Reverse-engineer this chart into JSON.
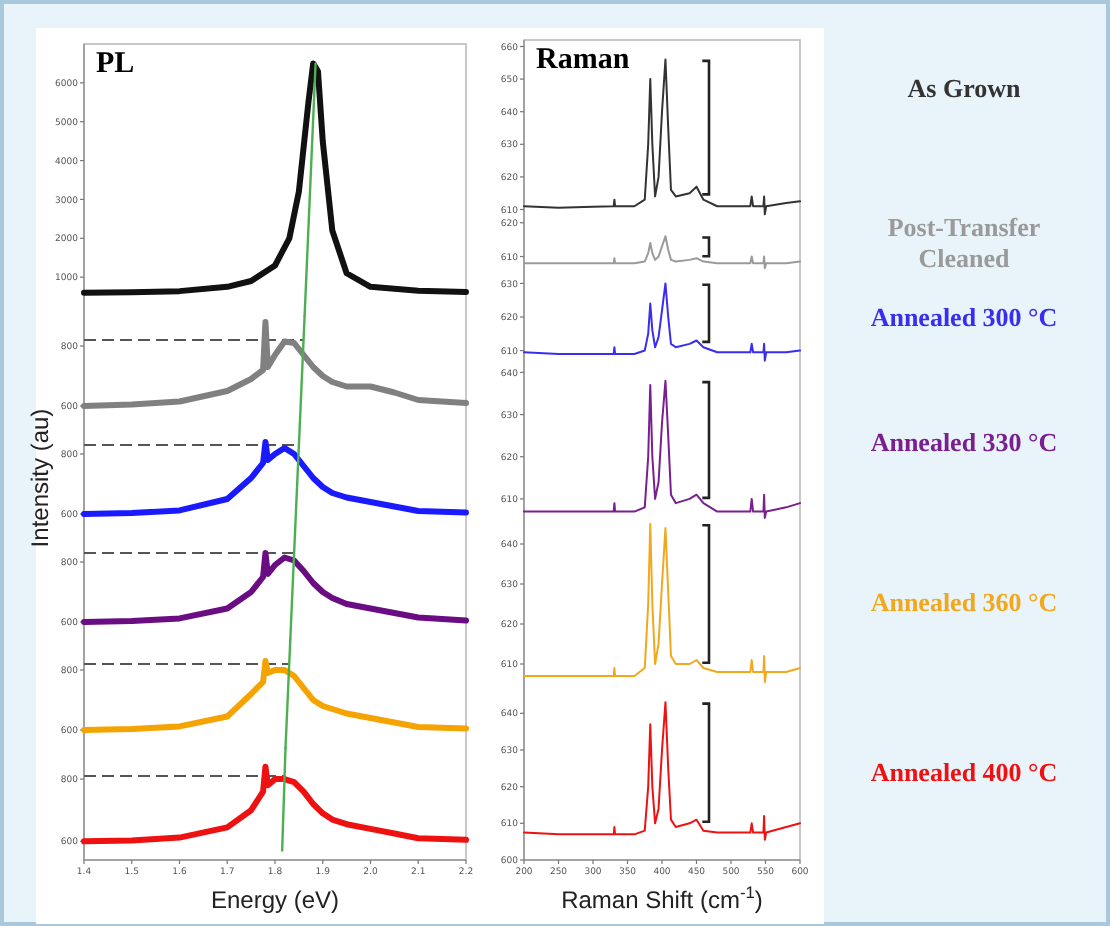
{
  "chart_data": [
    {
      "type": "line",
      "title": "PL",
      "xlim": [
        1.4,
        2.2
      ],
      "ylim": [
        0,
        7000
      ],
      "yticks": [
        1000,
        2000,
        3000,
        4000,
        5000,
        6000
      ],
      "tick_labels": "y",
      "series": [
        {
          "color": "#111111",
          "x": [
            1.4,
            1.5,
            1.6,
            1.7,
            1.75,
            1.8,
            1.83,
            1.85,
            1.87,
            1.88,
            1.89,
            1.9,
            1.92,
            1.95,
            2.0,
            2.1,
            2.2
          ],
          "values": [
            600,
            610,
            640,
            750,
            900,
            1300,
            2000,
            3200,
            5500,
            6500,
            6300,
            4500,
            2200,
            1100,
            750,
            650,
            620
          ]
        },
        {
          "type": "line",
          "color": "#4caf50",
          "x": [
            1.885,
            1.862
          ],
          "values": [
            6500,
            0
          ]
        }
      ]
    },
    {
      "type": "line",
      "xlim": [
        1.4,
        2.2
      ],
      "ylim": [
        540,
        900
      ],
      "yticks": [
        600,
        800
      ],
      "tick_labels": "y",
      "ref_lines": [
        {
          "axis": "y",
          "value": 820,
          "color": "#555555",
          "line_style": "dashed"
        }
      ],
      "series": [
        {
          "color": "#808080",
          "x": [
            1.4,
            1.5,
            1.6,
            1.7,
            1.75,
            1.775,
            1.78,
            1.785,
            1.8,
            1.82,
            1.84,
            1.86,
            1.88,
            1.9,
            1.92,
            1.95,
            2.0,
            2.05,
            2.1,
            2.2
          ],
          "values": [
            600,
            605,
            615,
            650,
            690,
            720,
            880,
            730,
            770,
            815,
            810,
            770,
            730,
            700,
            680,
            665,
            665,
            645,
            620,
            610
          ]
        },
        {
          "type": "line",
          "color": "#4caf50",
          "x": [
            1.862,
            1.852
          ],
          "values": [
            900,
            540
          ]
        }
      ]
    },
    {
      "type": "line",
      "ylabel": "Intensity (au)",
      "xlim": [
        1.4,
        2.2
      ],
      "ylim": [
        540,
        900
      ],
      "yticks": [
        600,
        800
      ],
      "tick_labels": "y",
      "ref_lines": [
        {
          "axis": "y",
          "value": 830,
          "color": "#555555",
          "line_style": "dashed"
        }
      ],
      "series": [
        {
          "color": "#1a1aff",
          "x": [
            1.4,
            1.5,
            1.6,
            1.7,
            1.75,
            1.775,
            1.78,
            1.785,
            1.8,
            1.82,
            1.84,
            1.86,
            1.88,
            1.9,
            1.92,
            1.95,
            2.0,
            2.05,
            2.1,
            2.2
          ],
          "values": [
            600,
            603,
            612,
            650,
            720,
            770,
            840,
            780,
            800,
            820,
            800,
            760,
            720,
            690,
            670,
            655,
            640,
            625,
            610,
            605
          ]
        },
        {
          "type": "line",
          "color": "#4caf50",
          "x": [
            1.852,
            1.842
          ],
          "values": [
            900,
            540
          ]
        }
      ]
    },
    {
      "type": "line",
      "xlim": [
        1.4,
        2.2
      ],
      "ylim": [
        540,
        900
      ],
      "yticks": [
        600,
        800
      ],
      "tick_labels": "y",
      "ref_lines": [
        {
          "axis": "y",
          "value": 830,
          "color": "#555555",
          "line_style": "dashed"
        }
      ],
      "series": [
        {
          "color": "#6a0d83",
          "x": [
            1.4,
            1.5,
            1.6,
            1.7,
            1.75,
            1.775,
            1.78,
            1.785,
            1.8,
            1.82,
            1.84,
            1.86,
            1.88,
            1.9,
            1.92,
            1.95,
            2.0,
            2.05,
            2.1,
            2.2
          ],
          "values": [
            600,
            603,
            612,
            645,
            700,
            750,
            830,
            760,
            790,
            815,
            805,
            770,
            730,
            700,
            680,
            660,
            645,
            630,
            615,
            605
          ]
        },
        {
          "type": "line",
          "color": "#4caf50",
          "x": [
            1.842,
            1.832
          ],
          "values": [
            900,
            540
          ]
        }
      ]
    },
    {
      "type": "line",
      "xlim": [
        1.4,
        2.2
      ],
      "ylim": [
        540,
        900
      ],
      "yticks": [
        600,
        800
      ],
      "tick_labels": "y",
      "ref_lines": [
        {
          "axis": "y",
          "value": 820,
          "color": "#555555",
          "line_style": "dashed"
        }
      ],
      "series": [
        {
          "color": "#f5a300",
          "x": [
            1.4,
            1.5,
            1.6,
            1.7,
            1.75,
            1.775,
            1.78,
            1.785,
            1.8,
            1.82,
            1.84,
            1.86,
            1.88,
            1.9,
            1.92,
            1.95,
            2.0,
            2.05,
            2.1,
            2.2
          ],
          "values": [
            600,
            603,
            612,
            645,
            720,
            760,
            830,
            790,
            800,
            800,
            780,
            740,
            700,
            680,
            670,
            655,
            640,
            625,
            610,
            605
          ]
        },
        {
          "type": "line",
          "color": "#4caf50",
          "x": [
            1.832,
            1.822
          ],
          "values": [
            900,
            540
          ]
        }
      ]
    },
    {
      "type": "line",
      "xlabel": "Energy (eV)",
      "xlim": [
        1.4,
        2.2
      ],
      "xticks": [
        1.4,
        1.5,
        1.6,
        1.7,
        1.8,
        1.9,
        {
          "value": 2,
          "label": "2.0"
        },
        2.1,
        2.2
      ],
      "ylim": [
        540,
        900
      ],
      "yticks": [
        600,
        800
      ],
      "ref_lines": [
        {
          "axis": "y",
          "value": 810,
          "color": "#555555",
          "line_style": "dashed"
        }
      ],
      "series": [
        {
          "color": "#ee1111",
          "x": [
            1.4,
            1.5,
            1.6,
            1.7,
            1.75,
            1.775,
            1.78,
            1.785,
            1.8,
            1.82,
            1.84,
            1.86,
            1.88,
            1.9,
            1.92,
            1.95,
            2.0,
            2.05,
            2.1,
            2.2
          ],
          "values": [
            600,
            603,
            612,
            645,
            700,
            760,
            840,
            780,
            800,
            800,
            790,
            760,
            720,
            690,
            670,
            655,
            640,
            625,
            610,
            605
          ]
        },
        {
          "type": "line",
          "color": "#4caf50",
          "x": [
            1.822,
            1.815
          ],
          "values": [
            900,
            570
          ]
        }
      ]
    },
    {
      "type": "line",
      "title": "Raman",
      "xlim": [
        200,
        600
      ],
      "ylim": [
        608,
        662
      ],
      "yticks": [
        610,
        620,
        630,
        640,
        650,
        660
      ],
      "tick_labels": "y",
      "series": [
        {
          "name": "As Grown",
          "color": "#333333",
          "x": [
            200,
            250,
            300,
            330,
            331,
            332,
            360,
            375,
            380,
            383,
            386,
            390,
            395,
            400,
            405,
            409,
            413,
            420,
            440,
            450,
            460,
            480,
            528,
            530,
            532,
            547,
            548,
            549,
            551,
            580,
            600
          ],
          "values": [
            611,
            610.5,
            610.8,
            611,
            613,
            611,
            611,
            613,
            630,
            650,
            630,
            614,
            620,
            640,
            656,
            635,
            616,
            614,
            615,
            617,
            613,
            611,
            611,
            614,
            611,
            611,
            614,
            608.5,
            611,
            612,
            612.5
          ]
        }
      ]
    },
    {
      "type": "line",
      "xlim": [
        200,
        600
      ],
      "ylim": [
        606,
        622
      ],
      "yticks": [
        610,
        620
      ],
      "tick_labels": "y",
      "series": [
        {
          "name": "Post-Transfer Cleaned",
          "color": "#9a9a9a",
          "x": [
            200,
            250,
            300,
            330,
            331,
            332,
            360,
            375,
            380,
            383,
            386,
            390,
            395,
            400,
            405,
            409,
            413,
            420,
            440,
            450,
            460,
            480,
            528,
            530,
            532,
            547,
            548,
            549,
            551,
            580,
            600
          ],
          "values": [
            608,
            608,
            608,
            608,
            609.5,
            608,
            608,
            608.5,
            611,
            614,
            611,
            609,
            610,
            613,
            616,
            612,
            609,
            608.5,
            609,
            609.5,
            608.5,
            608,
            608,
            610,
            608,
            608,
            610,
            606.5,
            608,
            608,
            608.5
          ]
        }
      ]
    },
    {
      "type": "line",
      "xlim": [
        200,
        600
      ],
      "ylim": [
        606,
        634
      ],
      "yticks": [
        610,
        620,
        630
      ],
      "tick_labels": "y",
      "series": [
        {
          "name": "Annealed 300 °C",
          "color": "#3a2cf0",
          "x": [
            200,
            250,
            300,
            330,
            331,
            332,
            360,
            375,
            380,
            383,
            386,
            390,
            395,
            400,
            405,
            409,
            413,
            420,
            440,
            450,
            460,
            480,
            528,
            530,
            532,
            547,
            548,
            549,
            551,
            580,
            600
          ],
          "values": [
            609.5,
            609,
            609,
            609,
            611,
            609,
            609,
            610,
            615,
            624,
            616,
            611,
            614,
            622,
            630,
            620,
            612,
            611,
            612,
            613,
            611,
            609.5,
            609.5,
            612,
            609.5,
            609.5,
            612,
            607,
            609.5,
            609.5,
            610
          ]
        }
      ]
    },
    {
      "type": "line",
      "xlim": [
        200,
        600
      ],
      "ylim": [
        605,
        642
      ],
      "yticks": [
        610,
        620,
        630,
        640
      ],
      "tick_labels": "y",
      "series": [
        {
          "name": "Annealed 330 °C",
          "color": "#7a1f8f",
          "x": [
            200,
            250,
            300,
            330,
            331,
            332,
            360,
            375,
            380,
            383,
            386,
            390,
            395,
            400,
            405,
            409,
            413,
            420,
            440,
            450,
            460,
            480,
            528,
            530,
            532,
            547,
            548,
            549,
            551,
            580,
            600
          ],
          "values": [
            607,
            607,
            607,
            607,
            609,
            607,
            607,
            608,
            620,
            637,
            620,
            610,
            614,
            628,
            638,
            625,
            611,
            609,
            610,
            611,
            609,
            607,
            607,
            610,
            607,
            607,
            611,
            605.5,
            607,
            608,
            609
          ]
        }
      ]
    },
    {
      "type": "line",
      "xlim": [
        200,
        600
      ],
      "ylim": [
        605,
        646
      ],
      "yticks": [
        610,
        620,
        630,
        640
      ],
      "tick_labels": "y",
      "series": [
        {
          "name": "Annealed 360 °C",
          "color": "#f2a81d",
          "x": [
            200,
            250,
            300,
            330,
            331,
            332,
            360,
            375,
            380,
            383,
            386,
            390,
            395,
            400,
            405,
            409,
            413,
            420,
            440,
            450,
            460,
            480,
            528,
            530,
            532,
            547,
            548,
            549,
            551,
            580,
            600
          ],
          "values": [
            607,
            607,
            607,
            607,
            609,
            607,
            607,
            609,
            625,
            645,
            625,
            610,
            615,
            630,
            644,
            628,
            612,
            610,
            610,
            611,
            609,
            608,
            608,
            611,
            608,
            608,
            612,
            605.5,
            608,
            608,
            609
          ]
        }
      ]
    },
    {
      "type": "line",
      "xlabel": "Raman Shift (cm$^{-1}$)",
      "xlim": [
        200,
        600
      ],
      "xticks": [
        200,
        250,
        300,
        350,
        400,
        450,
        500,
        550,
        600
      ],
      "ylim": [
        600,
        648
      ],
      "yticks": [
        600,
        610,
        620,
        630,
        640
      ],
      "series": [
        {
          "name": "Annealed 400 °C",
          "color": "#ee1111",
          "x": [
            200,
            250,
            300,
            330,
            331,
            332,
            360,
            375,
            380,
            383,
            386,
            390,
            395,
            400,
            405,
            409,
            413,
            420,
            440,
            450,
            460,
            480,
            528,
            530,
            532,
            547,
            548,
            549,
            551,
            580,
            600
          ],
          "values": [
            607.5,
            607,
            607,
            607,
            609,
            607,
            607,
            608,
            620,
            637,
            620,
            610,
            614,
            630,
            643,
            625,
            611,
            609,
            610,
            611,
            608,
            607.5,
            607.5,
            610,
            607.5,
            607.5,
            612,
            605.5,
            607.5,
            609,
            610
          ]
        }
      ]
    }
  ]
}
